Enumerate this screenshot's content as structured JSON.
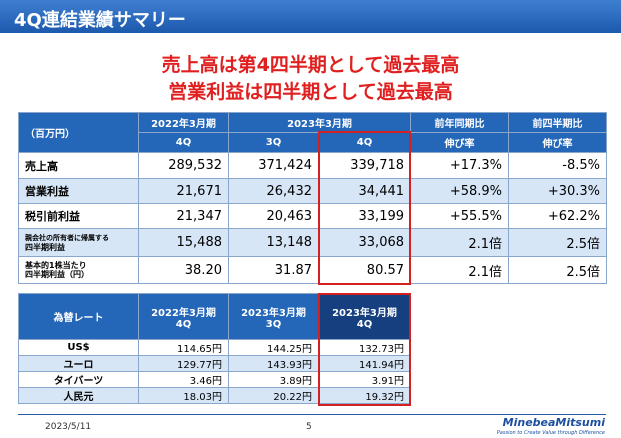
{
  "header": {
    "title": "4Q連結業績サマリー"
  },
  "headline": {
    "lines": [
      "売上高は第4四半期として過去最高",
      "営業利益は四半期として過去最高"
    ]
  },
  "table1": {
    "unit": "（百万円）",
    "fy2022": "2022年3月期",
    "fy2023": "2023年3月期",
    "yoy": "前年同期比",
    "qoq": "前四半期比",
    "cols": [
      "4Q",
      "3Q",
      "4Q"
    ],
    "yoy_sub": "伸び率",
    "qoq_sub": "伸び率",
    "rows": [
      {
        "label": [
          "売上高"
        ],
        "cells": [
          "289,532",
          "371,424",
          "339,718",
          "+17.3%",
          "-8.5%"
        ]
      },
      {
        "label": [
          "営業利益"
        ],
        "cells": [
          "21,671",
          "26,432",
          "34,441",
          "+58.9%",
          "+30.3%"
        ]
      },
      {
        "label": [
          "税引前利益"
        ],
        "cells": [
          "21,347",
          "20,463",
          "33,199",
          "+55.5%",
          "+62.2%"
        ]
      },
      {
        "label": [
          "親会社の所有者に帰属する",
          "四半期利益"
        ],
        "cells": [
          "15,488",
          "13,148",
          "33,068",
          "2.1倍",
          "2.5倍"
        ]
      },
      {
        "label": [
          "基本的1株当たり",
          "四半期利益（円）"
        ],
        "cells": [
          "38.20",
          "31.87",
          "80.57",
          "2.1倍",
          "2.5倍"
        ]
      }
    ]
  },
  "table2": {
    "title": "為替レート",
    "heads": [
      [
        "2022年3月期",
        "4Q"
      ],
      [
        "2023年3月期",
        "3Q"
      ],
      [
        "2023年3月期",
        "4Q"
      ]
    ],
    "rows": [
      {
        "label": "US$",
        "cells": [
          "114.65円",
          "144.25円",
          "132.73円"
        ]
      },
      {
        "label": "ユーロ",
        "cells": [
          "129.77円",
          "143.93円",
          "141.94円"
        ]
      },
      {
        "label": "タイバーツ",
        "cells": [
          "3.46円",
          "3.89円",
          "3.91円"
        ]
      },
      {
        "label": "人民元",
        "cells": [
          "18.03円",
          "20.22円",
          "19.32円"
        ]
      }
    ]
  },
  "footer": {
    "date": "2023/5/11",
    "page": "5",
    "logo": "MinebeaMitsumi",
    "tagline": "Passion to Create Value through Difference"
  }
}
